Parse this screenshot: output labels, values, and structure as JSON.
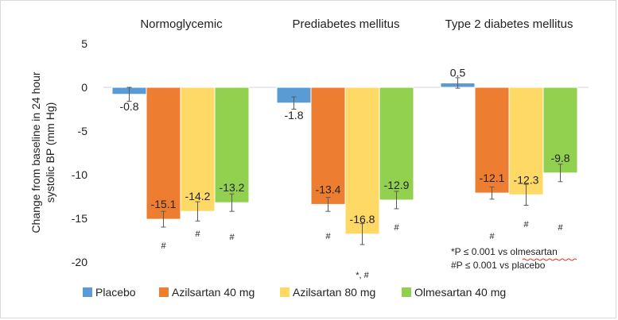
{
  "chart_data": {
    "type": "bar",
    "ylabel": "Change from baseline in 24 hour systolic BP (mm Hg)",
    "ylabel_lines": [
      "Change from baseline in 24 hour",
      "systolic BP (mm Hg)"
    ],
    "ylim": [
      -20,
      5
    ],
    "yticks": [
      5,
      0,
      -5,
      -10,
      -15,
      -20
    ],
    "grid": false,
    "legend_position": "bottom",
    "groups": [
      "Normoglycemic",
      "Prediabetes mellitus",
      "Type 2 diabetes mellitus"
    ],
    "series": [
      {
        "name": "Placebo",
        "color": "#5B9BD5",
        "values": [
          -0.8,
          -1.8,
          0.5
        ],
        "error": [
          0.8,
          0.7,
          0.6
        ],
        "labels": [
          "-0.8",
          "-1.8",
          "0.5"
        ],
        "markers": [
          "",
          "",
          ""
        ]
      },
      {
        "name": "Azilsartan 40 mg",
        "color": "#ED7D31",
        "values": [
          -15.1,
          -13.4,
          -12.1
        ],
        "error": [
          0.9,
          0.8,
          0.7
        ],
        "labels": [
          "-15.1",
          "-13.4",
          "-12.1"
        ],
        "markers": [
          "#",
          "#",
          "#"
        ]
      },
      {
        "name": "Azilsartan 80 mg",
        "color": "#FFD966",
        "values": [
          -14.2,
          -16.8,
          -12.3
        ],
        "error": [
          1.1,
          1.2,
          1.2
        ],
        "labels": [
          "-14.2",
          "-16.8",
          "-12.3"
        ],
        "markers": [
          "#",
          "*, #",
          "#"
        ]
      },
      {
        "name": "Olmesartan 40 mg",
        "color": "#92D050",
        "values": [
          -13.2,
          -12.9,
          -9.8
        ],
        "error": [
          1.0,
          1.0,
          1.0
        ],
        "labels": [
          "-13.2",
          "-12.9",
          "-9.8"
        ],
        "markers": [
          "#",
          "#",
          "#"
        ]
      }
    ],
    "footnotes": [
      "*P ≤  0.001 vs olmesartan",
      "#P ≤  0.001 vs placebo"
    ]
  }
}
